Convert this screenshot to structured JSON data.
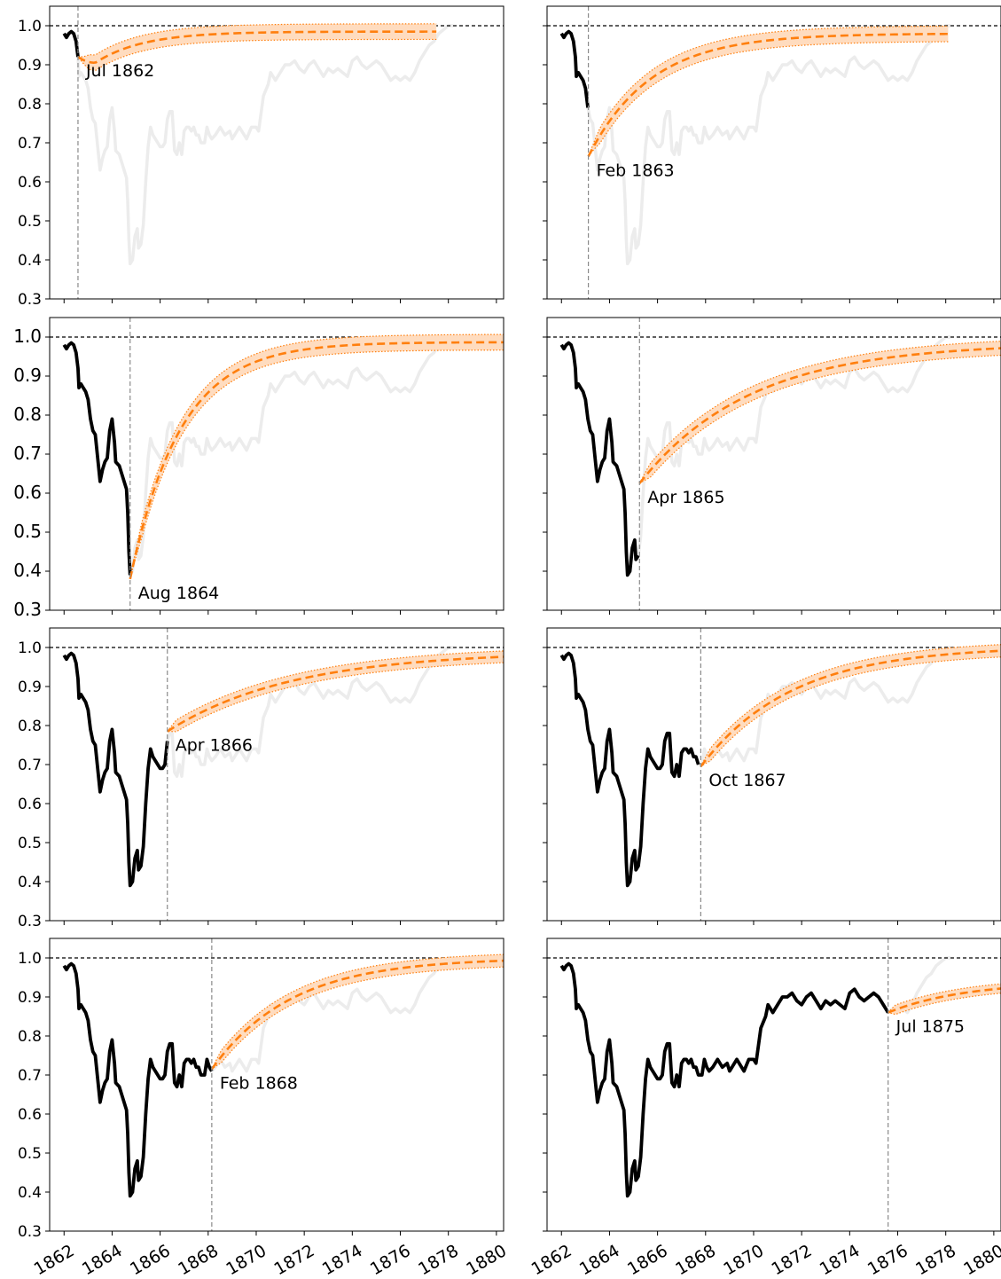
{
  "figure": {
    "x_tick_labels": [
      "1862",
      "1864",
      "1866",
      "1868",
      "1870",
      "1872",
      "1874",
      "1876",
      "1878",
      "1880"
    ],
    "y_tick_labels": [
      "0.3",
      "0.4",
      "0.5",
      "0.6",
      "0.7",
      "0.8",
      "0.9",
      "1.0"
    ]
  },
  "colors": {
    "observed": "#000000",
    "forecast": "#ff7f0e",
    "band_fill": "#ffdcbf",
    "full_series": "#ececec",
    "reference_line": "#000000",
    "vline": "#8a8a8a"
  },
  "chart_data": {
    "type": "line",
    "layout": "4 rows x 2 columns, shared x and y axes",
    "xlim": [
      1861.4,
      1880.3
    ],
    "ylim": [
      0.3,
      1.05
    ],
    "reference_line_y": 1.0,
    "observed_series": [
      [
        1862.0,
        0.98
      ],
      [
        1862.1,
        0.97
      ],
      [
        1862.2,
        0.98
      ],
      [
        1862.3,
        0.985
      ],
      [
        1862.4,
        0.98
      ],
      [
        1862.5,
        0.96
      ],
      [
        1862.58,
        0.92
      ],
      [
        1862.62,
        0.87
      ],
      [
        1862.7,
        0.88
      ],
      [
        1862.8,
        0.87
      ],
      [
        1862.9,
        0.86
      ],
      [
        1863.0,
        0.84
      ],
      [
        1863.1,
        0.79
      ],
      [
        1863.2,
        0.76
      ],
      [
        1863.3,
        0.75
      ],
      [
        1863.4,
        0.69
      ],
      [
        1863.5,
        0.63
      ],
      [
        1863.6,
        0.66
      ],
      [
        1863.7,
        0.68
      ],
      [
        1863.8,
        0.69
      ],
      [
        1863.9,
        0.76
      ],
      [
        1864.0,
        0.79
      ],
      [
        1864.1,
        0.73
      ],
      [
        1864.15,
        0.68
      ],
      [
        1864.3,
        0.67
      ],
      [
        1864.4,
        0.65
      ],
      [
        1864.5,
        0.63
      ],
      [
        1864.6,
        0.61
      ],
      [
        1864.65,
        0.55
      ],
      [
        1864.7,
        0.45
      ],
      [
        1864.75,
        0.39
      ],
      [
        1864.85,
        0.4
      ],
      [
        1864.95,
        0.46
      ],
      [
        1865.05,
        0.48
      ],
      [
        1865.1,
        0.43
      ],
      [
        1865.2,
        0.44
      ],
      [
        1865.3,
        0.49
      ],
      [
        1865.4,
        0.6
      ],
      [
        1865.5,
        0.69
      ],
      [
        1865.6,
        0.74
      ],
      [
        1865.7,
        0.72
      ],
      [
        1865.8,
        0.71
      ],
      [
        1865.9,
        0.7
      ],
      [
        1866.0,
        0.69
      ],
      [
        1866.1,
        0.69
      ],
      [
        1866.2,
        0.7
      ],
      [
        1866.3,
        0.76
      ],
      [
        1866.4,
        0.78
      ],
      [
        1866.5,
        0.78
      ],
      [
        1866.6,
        0.68
      ],
      [
        1866.7,
        0.67
      ],
      [
        1866.8,
        0.7
      ],
      [
        1866.9,
        0.67
      ],
      [
        1867.0,
        0.73
      ],
      [
        1867.1,
        0.74
      ],
      [
        1867.2,
        0.74
      ],
      [
        1867.3,
        0.73
      ],
      [
        1867.4,
        0.74
      ],
      [
        1867.5,
        0.72
      ],
      [
        1867.6,
        0.72
      ],
      [
        1867.7,
        0.7
      ],
      [
        1867.85,
        0.7
      ],
      [
        1867.95,
        0.74
      ],
      [
        1868.05,
        0.72
      ],
      [
        1868.15,
        0.71
      ],
      [
        1868.3,
        0.72
      ],
      [
        1868.5,
        0.74
      ],
      [
        1868.7,
        0.72
      ],
      [
        1868.9,
        0.73
      ],
      [
        1869.0,
        0.71
      ],
      [
        1869.1,
        0.72
      ],
      [
        1869.3,
        0.74
      ],
      [
        1869.5,
        0.72
      ],
      [
        1869.6,
        0.71
      ],
      [
        1869.8,
        0.74
      ],
      [
        1870.0,
        0.74
      ],
      [
        1870.1,
        0.73
      ],
      [
        1870.3,
        0.82
      ],
      [
        1870.5,
        0.85
      ],
      [
        1870.6,
        0.88
      ],
      [
        1870.8,
        0.86
      ],
      [
        1871.0,
        0.88
      ],
      [
        1871.2,
        0.9
      ],
      [
        1871.4,
        0.9
      ],
      [
        1871.6,
        0.91
      ],
      [
        1871.8,
        0.89
      ],
      [
        1872.0,
        0.88
      ],
      [
        1872.2,
        0.9
      ],
      [
        1872.4,
        0.91
      ],
      [
        1872.6,
        0.89
      ],
      [
        1872.8,
        0.87
      ],
      [
        1873.0,
        0.89
      ],
      [
        1873.2,
        0.88
      ],
      [
        1873.4,
        0.89
      ],
      [
        1873.6,
        0.88
      ],
      [
        1873.8,
        0.87
      ],
      [
        1874.0,
        0.91
      ],
      [
        1874.2,
        0.92
      ],
      [
        1874.4,
        0.9
      ],
      [
        1874.6,
        0.89
      ],
      [
        1874.8,
        0.9
      ],
      [
        1875.0,
        0.91
      ],
      [
        1875.2,
        0.9
      ],
      [
        1875.4,
        0.88
      ],
      [
        1875.6,
        0.86
      ],
      [
        1875.8,
        0.87
      ],
      [
        1876.0,
        0.86
      ],
      [
        1876.2,
        0.87
      ],
      [
        1876.4,
        0.86
      ],
      [
        1876.6,
        0.88
      ],
      [
        1876.8,
        0.91
      ],
      [
        1877.0,
        0.93
      ],
      [
        1877.2,
        0.95
      ],
      [
        1877.4,
        0.96
      ],
      [
        1877.6,
        0.98
      ],
      [
        1877.8,
        0.99
      ],
      [
        1878.0,
        1.0
      ],
      [
        1878.2,
        1.0
      ]
    ],
    "panels": [
      {
        "label": "Jul 1862",
        "cutoff": 1862.58,
        "start_y": 0.92,
        "min_y": 0.905,
        "min_t": 1863.3,
        "end_x": 1877.5,
        "asymptote": 0.985,
        "tau": 2.0,
        "band": 0.02
      },
      {
        "label": "Feb 1863",
        "cutoff": 1863.12,
        "start_y": 0.665,
        "min_y": 0.665,
        "min_t": 1863.12,
        "end_x": 1878.1,
        "asymptote": 0.98,
        "tau": 2.6,
        "band": 0.02
      },
      {
        "label": "Aug 1864",
        "cutoff": 1864.75,
        "start_y": 0.38,
        "min_y": 0.38,
        "min_t": 1864.75,
        "end_x": 1880.3,
        "asymptote": 0.987,
        "tau": 2.1,
        "band": 0.02
      },
      {
        "label": "Apr 1865",
        "cutoff": 1865.25,
        "start_y": 0.625,
        "min_y": 0.625,
        "min_t": 1865.25,
        "end_x": 1880.3,
        "asymptote": 0.985,
        "tau": 4.6,
        "band": 0.018
      },
      {
        "label": "Apr 1866",
        "cutoff": 1866.3,
        "start_y": 0.785,
        "min_y": 0.785,
        "min_t": 1866.3,
        "end_x": 1880.3,
        "asymptote": 0.99,
        "tau": 5.2,
        "band": 0.015
      },
      {
        "label": "Oct 1867",
        "cutoff": 1867.8,
        "start_y": 0.695,
        "min_y": 0.695,
        "min_t": 1867.8,
        "end_x": 1880.3,
        "asymptote": 1.003,
        "tau": 3.8,
        "band": 0.016
      },
      {
        "label": "Feb 1868",
        "cutoff": 1868.15,
        "start_y": 0.715,
        "min_y": 0.715,
        "min_t": 1868.15,
        "end_x": 1880.3,
        "asymptote": 1.0,
        "tau": 3.3,
        "band": 0.016
      },
      {
        "label": "Jul 1875",
        "cutoff": 1875.6,
        "start_y": 0.86,
        "min_y": 0.86,
        "min_t": 1875.6,
        "end_x": 1880.3,
        "asymptote": 0.94,
        "tau": 3.2,
        "band": 0.012
      }
    ]
  }
}
